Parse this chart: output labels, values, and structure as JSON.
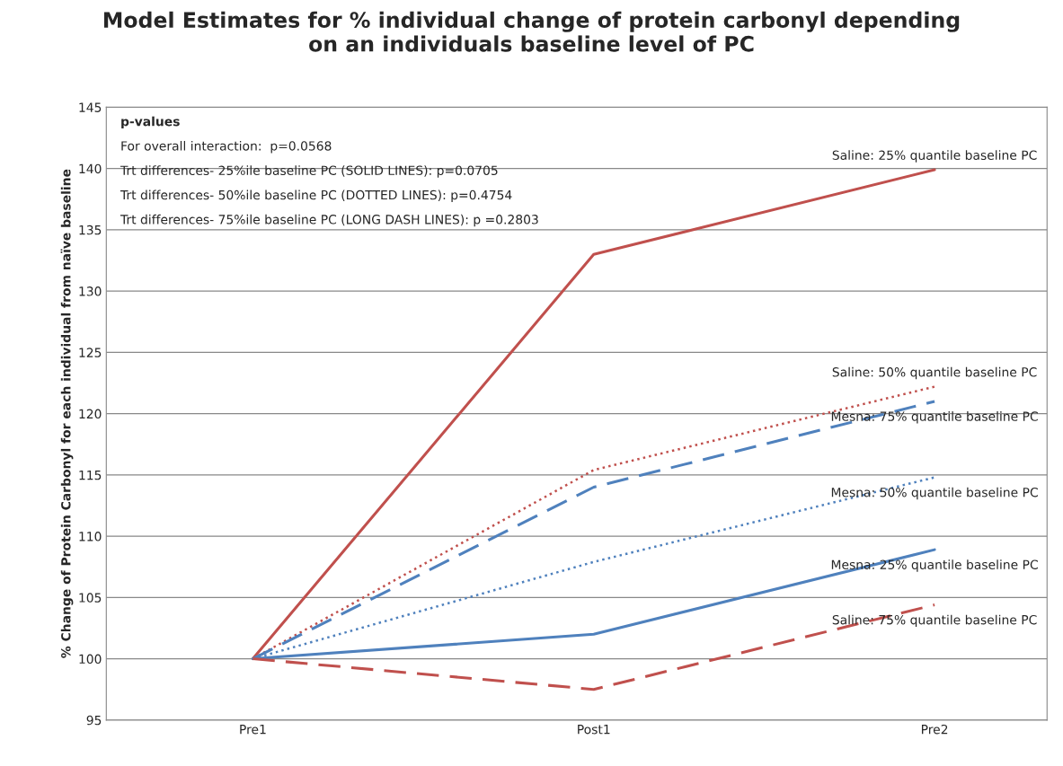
{
  "chart_data": {
    "type": "line",
    "title": "Model Estimates for % individual change of protein carbonyl depending\non an individuals baseline level of PC",
    "ylabel": "% Change of Protein Carbonyl for each individual from naïve baseline",
    "categories": [
      "Pre1",
      "Post1",
      "Pre2"
    ],
    "series": [
      {
        "name": "Saline: 25% quantile baseline PC",
        "color": "#c0504d",
        "line_style": "solid",
        "values": [
          100,
          133.0,
          139.9
        ]
      },
      {
        "name": "Saline: 50% quantile baseline PC",
        "color": "#c0504d",
        "line_style": "dotted",
        "values": [
          100,
          115.4,
          122.2
        ]
      },
      {
        "name": "Mesna: 75% quantile baseline PC",
        "color": "#4f81bd",
        "line_style": "dashed",
        "values": [
          100,
          114.0,
          121.0
        ]
      },
      {
        "name": "Mesna: 50% quantile baseline PC",
        "color": "#4f81bd",
        "line_style": "dotted",
        "values": [
          100,
          107.9,
          114.8
        ]
      },
      {
        "name": "Mesna: 25% quantile baseline PC",
        "color": "#4f81bd",
        "line_style": "solid",
        "values": [
          100,
          102.0,
          108.9
        ]
      },
      {
        "name": "Saline: 75% quantile baseline PC",
        "color": "#c0504d",
        "line_style": "dashed",
        "values": [
          100,
          97.5,
          104.4
        ]
      }
    ],
    "annotations": [
      "p-values",
      "For overall interaction:  p=0.0568",
      "Trt differences- 25%ile baseline PC (SOLID LINES): p=0.0705",
      "Trt differences- 50%ile baseline PC (DOTTED LINES): p=0.4754",
      "Trt differences- 75%ile baseline PC (LONG DASH LINES): p =0.2803"
    ],
    "ylim": [
      95,
      145
    ],
    "yticks": [
      95,
      100,
      105,
      110,
      115,
      120,
      125,
      130,
      135,
      140,
      145
    ],
    "grid": "y",
    "marker": "none",
    "legend": false
  }
}
